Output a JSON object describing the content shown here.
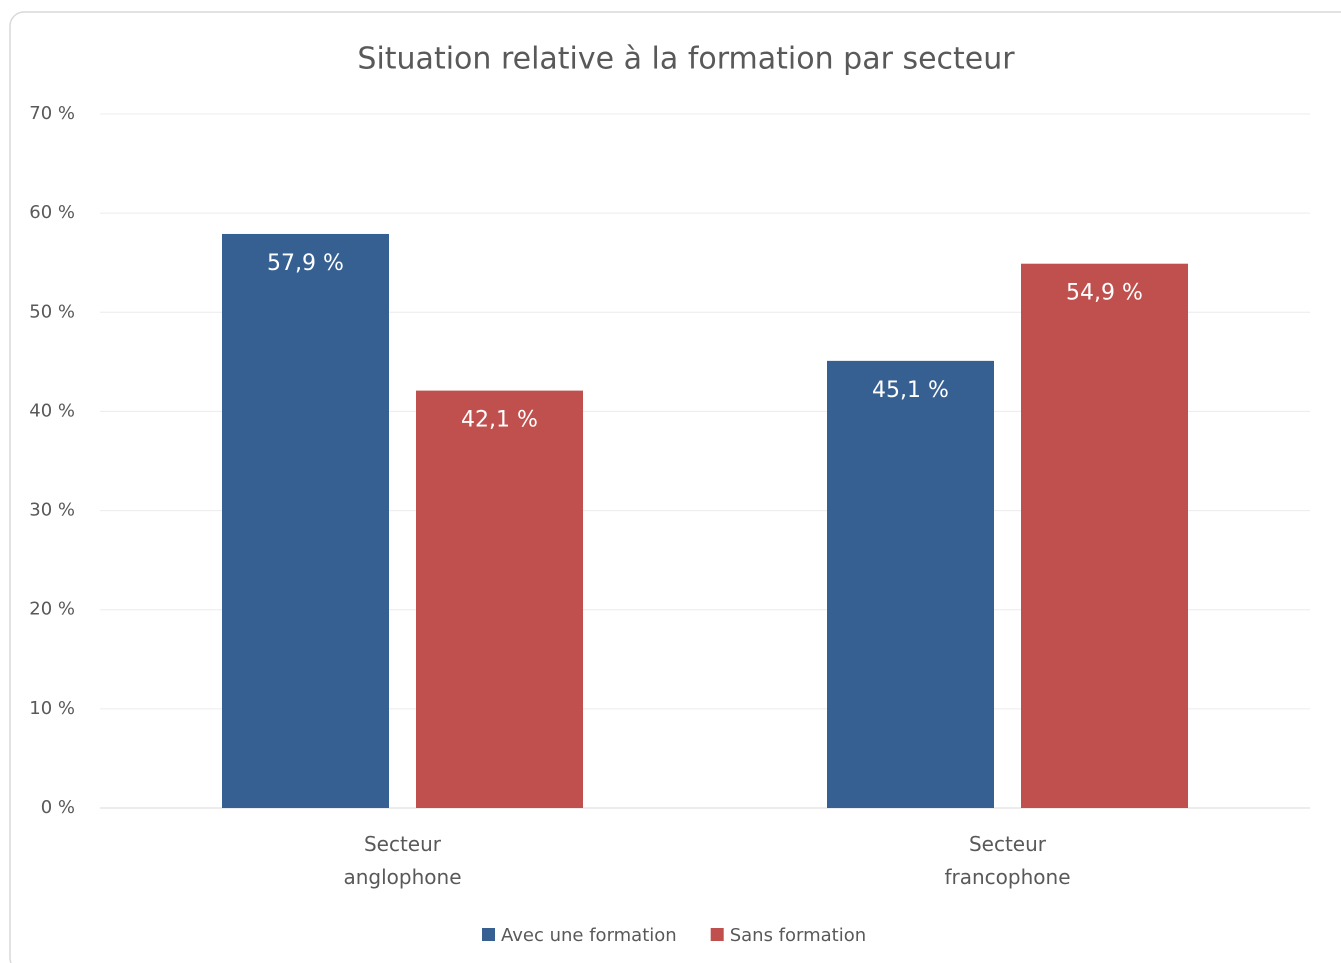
{
  "chart_data": {
    "type": "bar",
    "title": "Situation relative à la formation par secteur",
    "categories": [
      "Secteur anglophone",
      "Secteur francophone"
    ],
    "series": [
      {
        "name": "Avec une formation",
        "color": "#376092",
        "values": [
          57.9,
          45.1
        ],
        "value_labels": [
          "57,9 %",
          "45,1 %"
        ]
      },
      {
        "name": "Sans formation",
        "color": "#c0504d",
        "values": [
          42.1,
          54.9
        ],
        "value_labels": [
          "42,1 %",
          "54,9 %"
        ]
      }
    ],
    "ylim": [
      0,
      70
    ],
    "yticks": [
      {
        "value": 0,
        "label": "0 %"
      },
      {
        "value": 10,
        "label": "10 %"
      },
      {
        "value": 20,
        "label": "20 %"
      },
      {
        "value": 30,
        "label": "30 %"
      },
      {
        "value": 40,
        "label": "40 %"
      },
      {
        "value": 50,
        "label": "50 %"
      },
      {
        "value": 60,
        "label": "60 %"
      },
      {
        "value": 70,
        "label": "70 %"
      }
    ],
    "grid": true,
    "legend": "bottom"
  }
}
